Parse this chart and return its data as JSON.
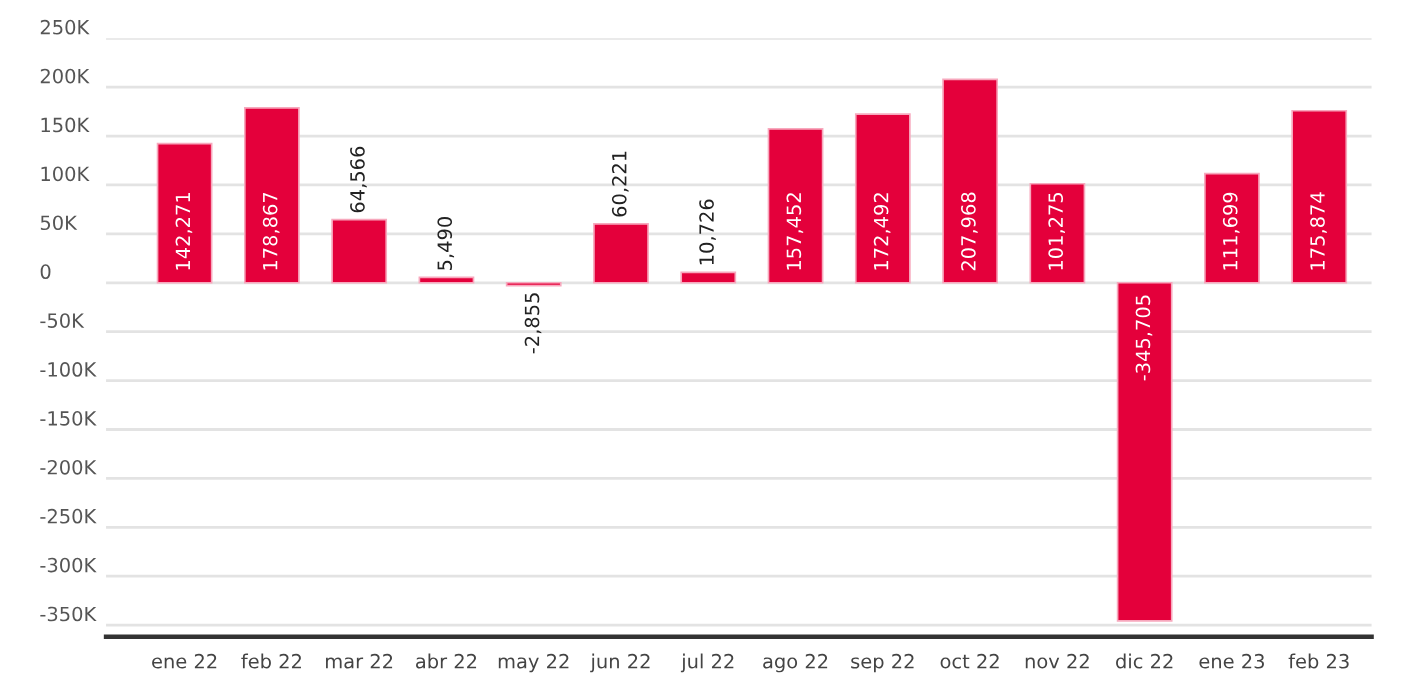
{
  "chart_data": {
    "type": "bar",
    "categories": [
      "ene 22",
      "feb 22",
      "mar 22",
      "abr 22",
      "may 22",
      "jun 22",
      "jul 22",
      "ago 22",
      "sep 22",
      "oct 22",
      "nov 22",
      "dic 22",
      "ene 23",
      "feb 23"
    ],
    "values": [
      142271,
      178867,
      64566,
      5490,
      -2855,
      60221,
      10726,
      157452,
      172492,
      207968,
      101275,
      -345705,
      111699,
      175874
    ],
    "value_labels": [
      "142,271",
      "178,867",
      "64,566",
      "5,490",
      "-2,855",
      "60,221",
      "10,726",
      "157,452",
      "172,492",
      "207,968",
      "101,275",
      "-345,705",
      "111,699",
      "175,874"
    ],
    "color": "#e4003b",
    "ylim": [
      -362000,
      250000
    ],
    "yticks": [
      {
        "value": 250000,
        "label": "250K"
      },
      {
        "value": 200000,
        "label": "200K"
      },
      {
        "value": 150000,
        "label": "150K"
      },
      {
        "value": 100000,
        "label": "100K"
      },
      {
        "value": 50000,
        "label": "50K"
      },
      0,
      {
        "value": -50000,
        "label": "-50K"
      },
      {
        "value": -100000,
        "label": "-100K"
      },
      {
        "value": -150000,
        "label": "-150K"
      },
      {
        "value": -200000,
        "label": "-200K"
      },
      {
        "value": -250000,
        "label": "-250K"
      },
      {
        "value": -300000,
        "label": "-300K"
      },
      {
        "value": -350000,
        "label": "-350K"
      }
    ],
    "grid": "y"
  }
}
